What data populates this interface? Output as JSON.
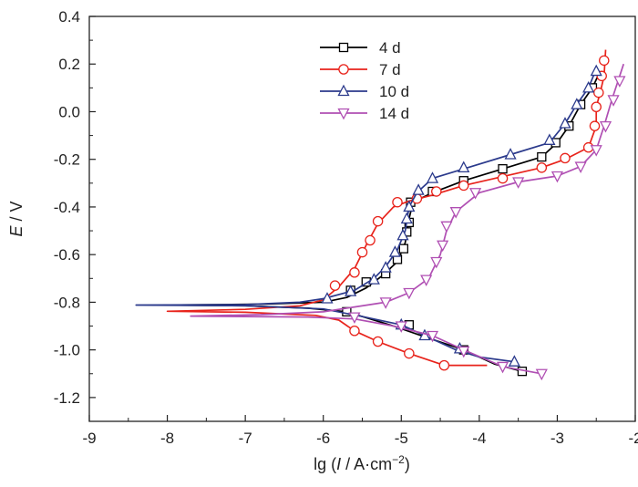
{
  "chart_data": {
    "type": "line",
    "xlabel_prefix": "lg (",
    "xlabel_var": "I",
    "xlabel_unit": " / A·cm",
    "xlabel_sup": "−2",
    "xlabel_suffix": ")",
    "ylabel_var": "E",
    "ylabel_unit": " / V",
    "xlim": [
      -9,
      -2
    ],
    "ylim": [
      -1.3,
      0.4
    ],
    "x_ticks": [
      "-9",
      "-8",
      "-7",
      "-6",
      "-5",
      "-4",
      "-3",
      "-2"
    ],
    "y_ticks": [
      "0.4",
      "0.2",
      "0.0",
      "-0.2",
      "-0.4",
      "-0.6",
      "-0.8",
      "-1.0",
      "-1.2"
    ],
    "legend_position": "top-center",
    "series": [
      {
        "name": "4 d",
        "color": "#000000",
        "marker": "square",
        "points": [
          [
            -3.45,
            -1.09
          ],
          [
            -3.8,
            -1.06
          ],
          [
            -4.2,
            -1.0
          ],
          [
            -4.7,
            -0.945
          ],
          [
            -5.1,
            -0.9
          ],
          [
            -5.4,
            -0.87
          ],
          [
            -5.7,
            -0.84
          ],
          [
            -6.2,
            -0.825
          ],
          [
            -7.0,
            -0.815
          ],
          [
            -8.0,
            -0.812
          ],
          [
            -6.8,
            -0.808
          ],
          [
            -6.0,
            -0.8
          ],
          [
            -5.7,
            -0.78
          ],
          [
            -5.45,
            -0.74
          ],
          [
            -5.25,
            -0.69
          ],
          [
            -5.05,
            -0.63
          ],
          [
            -4.95,
            -0.55
          ],
          [
            -4.9,
            -0.45
          ],
          [
            -4.85,
            -0.38
          ],
          [
            -4.6,
            -0.34
          ],
          [
            -4.2,
            -0.29
          ],
          [
            -3.7,
            -0.24
          ],
          [
            -3.2,
            -0.19
          ],
          [
            -3.0,
            -0.13
          ],
          [
            -2.85,
            -0.06
          ],
          [
            -2.7,
            0.03
          ],
          [
            -2.55,
            0.1
          ],
          [
            -2.45,
            0.17
          ]
        ],
        "markers_at": [
          [
            -3.45,
            -1.09
          ],
          [
            -4.2,
            -1.0
          ],
          [
            -4.9,
            -0.895
          ],
          [
            -5.7,
            -0.84
          ],
          [
            -5.65,
            -0.75
          ],
          [
            -5.45,
            -0.715
          ],
          [
            -5.2,
            -0.68
          ],
          [
            -5.05,
            -0.62
          ],
          [
            -4.97,
            -0.575
          ],
          [
            -4.93,
            -0.505
          ],
          [
            -4.9,
            -0.465
          ],
          [
            -4.88,
            -0.38
          ],
          [
            -4.6,
            -0.335
          ],
          [
            -4.2,
            -0.29
          ],
          [
            -3.7,
            -0.24
          ],
          [
            -3.2,
            -0.19
          ],
          [
            -3.02,
            -0.13
          ],
          [
            -2.85,
            -0.06
          ],
          [
            -2.7,
            0.03
          ],
          [
            -2.55,
            0.1
          ]
        ]
      },
      {
        "name": "7 d",
        "color": "#e8231b",
        "marker": "circle",
        "points": [
          [
            -3.9,
            -1.065
          ],
          [
            -4.45,
            -1.065
          ],
          [
            -4.9,
            -1.015
          ],
          [
            -5.3,
            -0.965
          ],
          [
            -5.6,
            -0.92
          ],
          [
            -5.8,
            -0.875
          ],
          [
            -6.1,
            -0.855
          ],
          [
            -7.0,
            -0.842
          ],
          [
            -8.0,
            -0.838
          ],
          [
            -7.0,
            -0.83
          ],
          [
            -6.3,
            -0.815
          ],
          [
            -6.0,
            -0.79
          ],
          [
            -5.8,
            -0.735
          ],
          [
            -5.6,
            -0.66
          ],
          [
            -5.45,
            -0.56
          ],
          [
            -5.3,
            -0.47
          ],
          [
            -5.1,
            -0.4
          ],
          [
            -4.9,
            -0.375
          ],
          [
            -4.6,
            -0.35
          ],
          [
            -4.2,
            -0.31
          ],
          [
            -3.8,
            -0.28
          ],
          [
            -3.2,
            -0.235
          ],
          [
            -2.9,
            -0.2
          ],
          [
            -2.6,
            -0.15
          ],
          [
            -2.5,
            -0.06
          ],
          [
            -2.5,
            0.02
          ],
          [
            -2.45,
            0.08
          ],
          [
            -2.4,
            0.15
          ],
          [
            -2.38,
            0.26
          ]
        ],
        "markers_at": [
          [
            -4.45,
            -1.065
          ],
          [
            -4.9,
            -1.015
          ],
          [
            -5.3,
            -0.965
          ],
          [
            -5.6,
            -0.92
          ],
          [
            -5.85,
            -0.73
          ],
          [
            -5.6,
            -0.675
          ],
          [
            -5.5,
            -0.59
          ],
          [
            -5.4,
            -0.54
          ],
          [
            -5.3,
            -0.46
          ],
          [
            -5.05,
            -0.38
          ],
          [
            -4.8,
            -0.365
          ],
          [
            -4.55,
            -0.335
          ],
          [
            -4.2,
            -0.31
          ],
          [
            -3.7,
            -0.28
          ],
          [
            -3.2,
            -0.235
          ],
          [
            -2.9,
            -0.195
          ],
          [
            -2.6,
            -0.15
          ],
          [
            -2.52,
            -0.06
          ],
          [
            -2.5,
            0.02
          ],
          [
            -2.47,
            0.08
          ],
          [
            -2.43,
            0.15
          ],
          [
            -2.4,
            0.215
          ]
        ]
      },
      {
        "name": "10 d",
        "color": "#2b3a8c",
        "marker": "triangle-up",
        "points": [
          [
            -3.55,
            -1.05
          ],
          [
            -4.0,
            -1.03
          ],
          [
            -4.3,
            -1.0
          ],
          [
            -4.7,
            -0.94
          ],
          [
            -5.0,
            -0.895
          ],
          [
            -5.5,
            -0.86
          ],
          [
            -6.0,
            -0.828
          ],
          [
            -7.0,
            -0.815
          ],
          [
            -8.4,
            -0.812
          ],
          [
            -7.0,
            -0.81
          ],
          [
            -6.3,
            -0.8
          ],
          [
            -6.0,
            -0.785
          ],
          [
            -5.6,
            -0.75
          ],
          [
            -5.35,
            -0.7
          ],
          [
            -5.2,
            -0.65
          ],
          [
            -5.05,
            -0.58
          ],
          [
            -4.95,
            -0.5
          ],
          [
            -4.9,
            -0.4
          ],
          [
            -4.8,
            -0.34
          ],
          [
            -4.6,
            -0.28
          ],
          [
            -4.2,
            -0.24
          ],
          [
            -3.6,
            -0.18
          ],
          [
            -3.1,
            -0.13
          ],
          [
            -2.9,
            -0.05
          ],
          [
            -2.75,
            0.03
          ],
          [
            -2.6,
            0.1
          ],
          [
            -2.5,
            0.18
          ]
        ],
        "markers_at": [
          [
            -3.55,
            -1.05
          ],
          [
            -4.25,
            -0.995
          ],
          [
            -4.7,
            -0.94
          ],
          [
            -5.0,
            -0.895
          ],
          [
            -5.95,
            -0.785
          ],
          [
            -5.65,
            -0.755
          ],
          [
            -5.35,
            -0.705
          ],
          [
            -5.2,
            -0.655
          ],
          [
            -5.08,
            -0.59
          ],
          [
            -4.98,
            -0.52
          ],
          [
            -4.93,
            -0.45
          ],
          [
            -4.9,
            -0.4
          ],
          [
            -4.78,
            -0.33
          ],
          [
            -4.6,
            -0.28
          ],
          [
            -4.2,
            -0.235
          ],
          [
            -3.6,
            -0.18
          ],
          [
            -3.1,
            -0.12
          ],
          [
            -2.9,
            -0.05
          ],
          [
            -2.75,
            0.03
          ],
          [
            -2.6,
            0.1
          ],
          [
            -2.5,
            0.17
          ]
        ]
      },
      {
        "name": "14 d",
        "color": "#b04fb3",
        "marker": "triangle-down",
        "points": [
          [
            -3.2,
            -1.1
          ],
          [
            -3.7,
            -1.07
          ],
          [
            -4.2,
            -1.0
          ],
          [
            -4.6,
            -0.94
          ],
          [
            -5.1,
            -0.9
          ],
          [
            -5.6,
            -0.87
          ],
          [
            -6.2,
            -0.862
          ],
          [
            -7.0,
            -0.86
          ],
          [
            -7.7,
            -0.858
          ],
          [
            -6.8,
            -0.852
          ],
          [
            -6.0,
            -0.84
          ],
          [
            -5.6,
            -0.82
          ],
          [
            -5.2,
            -0.8
          ],
          [
            -4.9,
            -0.76
          ],
          [
            -4.65,
            -0.7
          ],
          [
            -4.5,
            -0.6
          ],
          [
            -4.42,
            -0.5
          ],
          [
            -4.3,
            -0.42
          ],
          [
            -4.0,
            -0.34
          ],
          [
            -3.5,
            -0.295
          ],
          [
            -3.0,
            -0.27
          ],
          [
            -2.7,
            -0.23
          ],
          [
            -2.5,
            -0.16
          ],
          [
            -2.4,
            -0.06
          ],
          [
            -2.3,
            0.05
          ],
          [
            -2.22,
            0.13
          ],
          [
            -2.15,
            0.2
          ]
        ],
        "markers_at": [
          [
            -3.2,
            -1.1
          ],
          [
            -3.7,
            -1.07
          ],
          [
            -4.2,
            -1.005
          ],
          [
            -4.6,
            -0.94
          ],
          [
            -5.0,
            -0.9
          ],
          [
            -5.6,
            -0.862
          ],
          [
            -5.2,
            -0.8
          ],
          [
            -4.9,
            -0.76
          ],
          [
            -4.68,
            -0.705
          ],
          [
            -4.55,
            -0.63
          ],
          [
            -4.47,
            -0.56
          ],
          [
            -4.42,
            -0.48
          ],
          [
            -4.3,
            -0.42
          ],
          [
            -4.05,
            -0.34
          ],
          [
            -3.5,
            -0.295
          ],
          [
            -3.0,
            -0.27
          ],
          [
            -2.7,
            -0.23
          ],
          [
            -2.5,
            -0.16
          ],
          [
            -2.38,
            -0.06
          ],
          [
            -2.28,
            0.05
          ],
          [
            -2.2,
            0.13
          ]
        ]
      }
    ]
  }
}
